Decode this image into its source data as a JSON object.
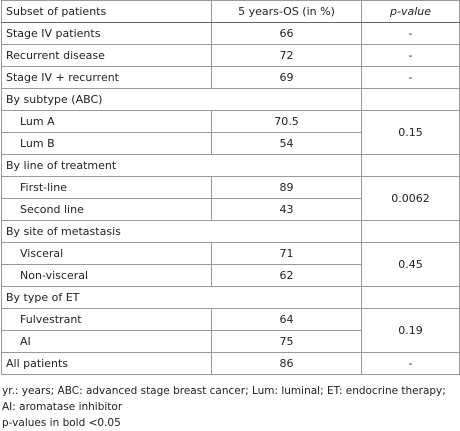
{
  "table": {
    "header": [
      "Subset of patients",
      "5 years-OS (in %)",
      "p-value"
    ],
    "rows_top": [
      {
        "label": "Stage IV patients",
        "os": "66",
        "p": "-"
      },
      {
        "label": "Recurrent disease",
        "os": "72",
        "p": "-"
      },
      {
        "label": "Stage IV + recurrent",
        "os": "69",
        "p": "-"
      }
    ],
    "groups": [
      {
        "section": "By subtype (ABC)",
        "items": [
          {
            "label": "Lum A",
            "os": "70.5"
          },
          {
            "label": "Lum B",
            "os": "54"
          }
        ],
        "p": "0.15"
      },
      {
        "section": "By line of treatment",
        "items": [
          {
            "label": "First-line",
            "os": "89"
          },
          {
            "label": "Second line",
            "os": "43"
          }
        ],
        "p": "0.0062"
      },
      {
        "section": "By site of metastasis",
        "items": [
          {
            "label": "Visceral",
            "os": "71"
          },
          {
            "label": "Non-visceral",
            "os": "62"
          }
        ],
        "p": "0.45"
      },
      {
        "section": "By type of ET",
        "items": [
          {
            "label": "Fulvestrant",
            "os": "64"
          },
          {
            "label": "AI",
            "os": "75"
          }
        ],
        "p": "0.19"
      }
    ],
    "rows_bottom": [
      {
        "label": "All patients",
        "os": "86",
        "p": "-"
      }
    ]
  },
  "footnotes": [
    "yr.: years; ABC: advanced stage breast cancer; Lum: luminal; ET: endocrine therapy; AI: aromatase inhibitor",
    "p-values in bold <0.05"
  ]
}
